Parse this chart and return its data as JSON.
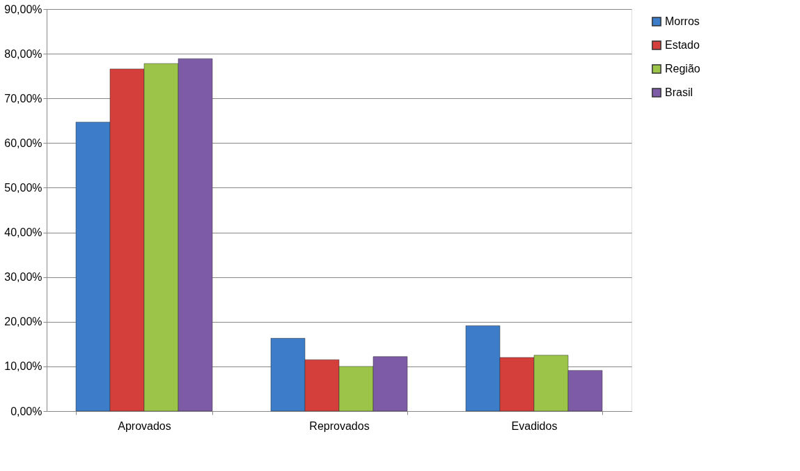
{
  "chart_data": {
    "type": "bar",
    "categories": [
      "Aprovados",
      "Reprovados",
      "Evadidos"
    ],
    "series": [
      {
        "name": "Morros",
        "color": "#3d7cc9",
        "values": [
          64.7,
          16.3,
          19.1
        ]
      },
      {
        "name": "Estado",
        "color": "#d43f3c",
        "values": [
          76.6,
          11.5,
          12.0
        ]
      },
      {
        "name": "Região",
        "color": "#9bc448",
        "values": [
          77.8,
          10.0,
          12.5
        ]
      },
      {
        "name": "Brasil",
        "color": "#7d5ba6",
        "values": [
          78.9,
          12.2,
          9.1
        ]
      }
    ],
    "ylim": [
      0,
      90
    ],
    "yticks": [
      {
        "value": 0,
        "label": "0,00%"
      },
      {
        "value": 10,
        "label": "10,00%"
      },
      {
        "value": 20,
        "label": "20,00%"
      },
      {
        "value": 30,
        "label": "30,00%"
      },
      {
        "value": 40,
        "label": "40,00%"
      },
      {
        "value": 50,
        "label": "50,00%"
      },
      {
        "value": 60,
        "label": "60,00%"
      },
      {
        "value": 70,
        "label": "70,00%"
      },
      {
        "value": 80,
        "label": "80,00%"
      },
      {
        "value": 90,
        "label": "90,00%"
      }
    ],
    "grid": "y",
    "legend": "right"
  }
}
